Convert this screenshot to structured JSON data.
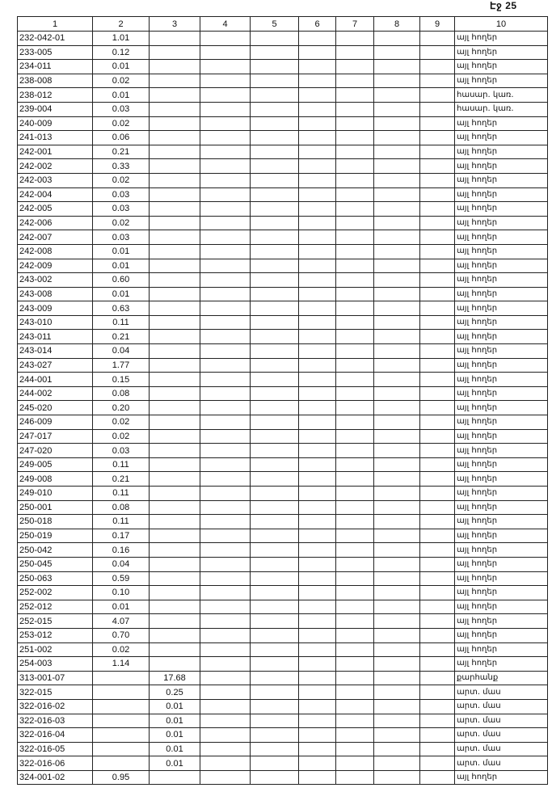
{
  "page_number": "Էջ 25",
  "columns": [
    "1",
    "2",
    "3",
    "4",
    "5",
    "6",
    "7",
    "8",
    "9",
    "10"
  ],
  "rows": [
    {
      "c1": "232-042-01",
      "c2": "1.01",
      "c3": "",
      "c10": "այլ հողեր"
    },
    {
      "c1": "233-005",
      "c2": "0.12",
      "c3": "",
      "c10": "այլ հողեր"
    },
    {
      "c1": "234-011",
      "c2": "0.01",
      "c3": "",
      "c10": "այլ հողեր"
    },
    {
      "c1": "238-008",
      "c2": "0.02",
      "c3": "",
      "c10": "այլ հողեր"
    },
    {
      "c1": "238-012",
      "c2": "0.01",
      "c3": "",
      "c10": "հասար. կառ."
    },
    {
      "c1": "239-004",
      "c2": "0.03",
      "c3": "",
      "c10": "հասար. կառ."
    },
    {
      "c1": "240-009",
      "c2": "0.02",
      "c3": "",
      "c10": "այլ հողեր"
    },
    {
      "c1": "241-013",
      "c2": "0.06",
      "c3": "",
      "c10": "այլ հողեր"
    },
    {
      "c1": "242-001",
      "c2": "0.21",
      "c3": "",
      "c10": "այլ հողեր"
    },
    {
      "c1": "242-002",
      "c2": "0.33",
      "c3": "",
      "c10": "այլ հողեր"
    },
    {
      "c1": "242-003",
      "c2": "0.02",
      "c3": "",
      "c10": "այլ հողեր"
    },
    {
      "c1": "242-004",
      "c2": "0.03",
      "c3": "",
      "c10": "այլ հողեր"
    },
    {
      "c1": "242-005",
      "c2": "0.03",
      "c3": "",
      "c10": "այլ հողեր"
    },
    {
      "c1": "242-006",
      "c2": "0.02",
      "c3": "",
      "c10": "այլ հողեր"
    },
    {
      "c1": "242-007",
      "c2": "0.03",
      "c3": "",
      "c10": "այլ հողեր"
    },
    {
      "c1": "242-008",
      "c2": "0.01",
      "c3": "",
      "c10": "այլ հողեր"
    },
    {
      "c1": "242-009",
      "c2": "0.01",
      "c3": "",
      "c10": "այլ հողեր"
    },
    {
      "c1": "243-002",
      "c2": "0.60",
      "c3": "",
      "c10": "այլ հողեր"
    },
    {
      "c1": "243-008",
      "c2": "0.01",
      "c3": "",
      "c10": "այլ հողեր"
    },
    {
      "c1": "243-009",
      "c2": "0.63",
      "c3": "",
      "c10": "այլ հողեր"
    },
    {
      "c1": "243-010",
      "c2": "0.11",
      "c3": "",
      "c10": "այլ հողեր"
    },
    {
      "c1": "243-011",
      "c2": "0.21",
      "c3": "",
      "c10": "այլ հողեր"
    },
    {
      "c1": "243-014",
      "c2": "0.04",
      "c3": "",
      "c10": "այլ հողեր"
    },
    {
      "c1": "243-027",
      "c2": "1.77",
      "c3": "",
      "c10": "այլ հողեր"
    },
    {
      "c1": "244-001",
      "c2": "0.15",
      "c3": "",
      "c10": "այլ հողեր"
    },
    {
      "c1": "244-002",
      "c2": "0.08",
      "c3": "",
      "c10": "այլ հողեր"
    },
    {
      "c1": "245-020",
      "c2": "0.20",
      "c3": "",
      "c10": "այլ հողեր"
    },
    {
      "c1": "246-009",
      "c2": "0.02",
      "c3": "",
      "c10": "այլ հողեր"
    },
    {
      "c1": "247-017",
      "c2": "0.02",
      "c3": "",
      "c10": "այլ հողեր"
    },
    {
      "c1": "247-020",
      "c2": "0.03",
      "c3": "",
      "c10": "այլ հողեր"
    },
    {
      "c1": "249-005",
      "c2": "0.11",
      "c3": "",
      "c10": "այլ հողեր"
    },
    {
      "c1": "249-008",
      "c2": "0.21",
      "c3": "",
      "c10": "այլ հողեր"
    },
    {
      "c1": "249-010",
      "c2": "0.11",
      "c3": "",
      "c10": "այլ հողեր"
    },
    {
      "c1": "250-001",
      "c2": "0.08",
      "c3": "",
      "c10": "այլ հողեր"
    },
    {
      "c1": "250-018",
      "c2": "0.11",
      "c3": "",
      "c10": "այլ հողեր"
    },
    {
      "c1": "250-019",
      "c2": "0.17",
      "c3": "",
      "c10": "այլ հողեր"
    },
    {
      "c1": "250-042",
      "c2": "0.16",
      "c3": "",
      "c10": "այլ հողեր"
    },
    {
      "c1": "250-045",
      "c2": "0.04",
      "c3": "",
      "c10": "այլ հողեր"
    },
    {
      "c1": "250-063",
      "c2": "0.59",
      "c3": "",
      "c10": "այլ հողեր"
    },
    {
      "c1": "252-002",
      "c2": "0.10",
      "c3": "",
      "c10": "այլ հողեր"
    },
    {
      "c1": "252-012",
      "c2": "0.01",
      "c3": "",
      "c10": "այլ հողեր"
    },
    {
      "c1": "252-015",
      "c2": "4.07",
      "c3": "",
      "c10": "այլ հողեր"
    },
    {
      "c1": "253-012",
      "c2": "0.70",
      "c3": "",
      "c10": "այլ հողեր"
    },
    {
      "c1": "251-002",
      "c2": "0.02",
      "c3": "",
      "c10": "այլ հողեր"
    },
    {
      "c1": "254-003",
      "c2": "1.14",
      "c3": "",
      "c10": "այլ հողեր"
    },
    {
      "c1": "313-001-07",
      "c2": "",
      "c3": "17.68",
      "c10": "քարհանք"
    },
    {
      "c1": "322-015",
      "c2": "",
      "c3": "0.25",
      "c10": "արտ. մաս"
    },
    {
      "c1": "322-016-02",
      "c2": "",
      "c3": "0.01",
      "c10": "արտ. մաս"
    },
    {
      "c1": "322-016-03",
      "c2": "",
      "c3": "0.01",
      "c10": "արտ. մաս"
    },
    {
      "c1": "322-016-04",
      "c2": "",
      "c3": "0.01",
      "c10": "արտ. մաս"
    },
    {
      "c1": "322-016-05",
      "c2": "",
      "c3": "0.01",
      "c10": "արտ. մաս"
    },
    {
      "c1": "322-016-06",
      "c2": "",
      "c3": "0.01",
      "c10": "արտ. մաս"
    },
    {
      "c1": "324-001-02",
      "c2": "0.95",
      "c3": "",
      "c10": "այլ հողեր"
    }
  ]
}
